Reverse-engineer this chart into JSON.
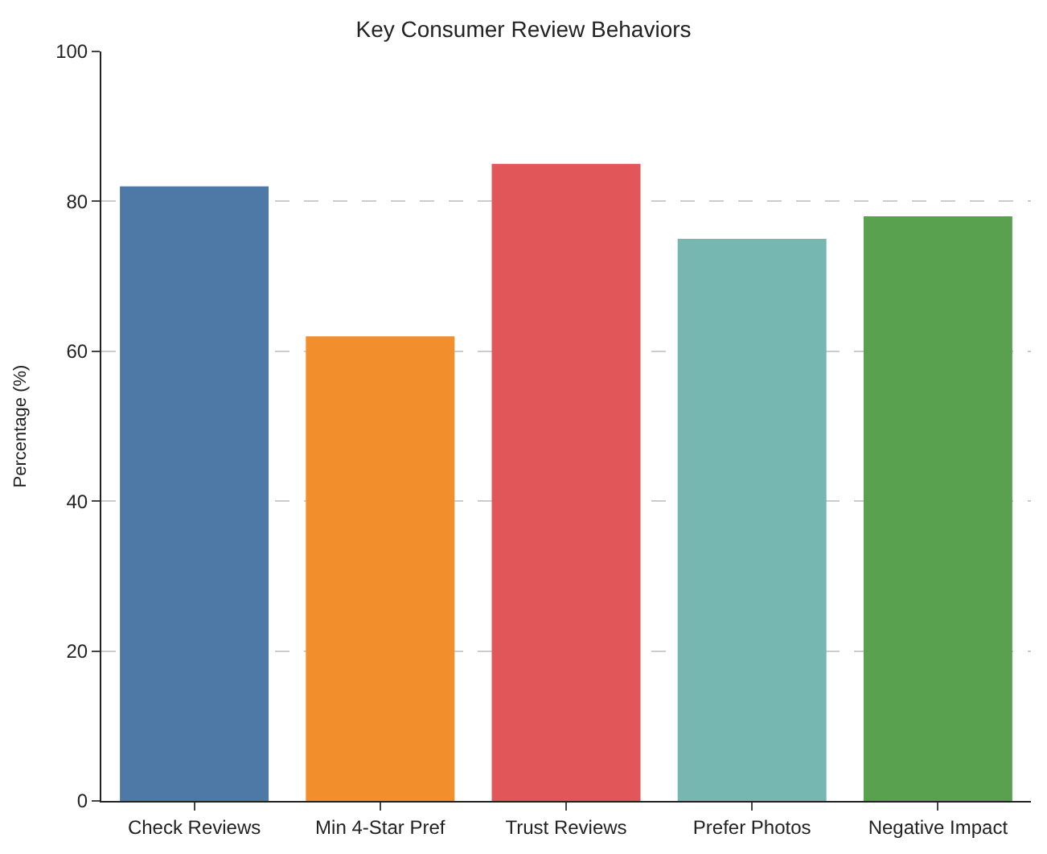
{
  "chart_data": {
    "type": "bar",
    "title": "Key Consumer Review Behaviors",
    "ylabel": "Percentage (%)",
    "categories": [
      "Check Reviews",
      "Min 4-Star Pref",
      "Trust Reviews",
      "Prefer Photos",
      "Negative Impact"
    ],
    "values": [
      82,
      62,
      85,
      75,
      78
    ],
    "colors": [
      "#4e79a7",
      "#f28e2b",
      "#e15759",
      "#76b7b2",
      "#59a14f"
    ],
    "ylim": [
      0,
      100
    ],
    "yticks": [
      0,
      20,
      40,
      60,
      80,
      100
    ],
    "grid": "y"
  }
}
